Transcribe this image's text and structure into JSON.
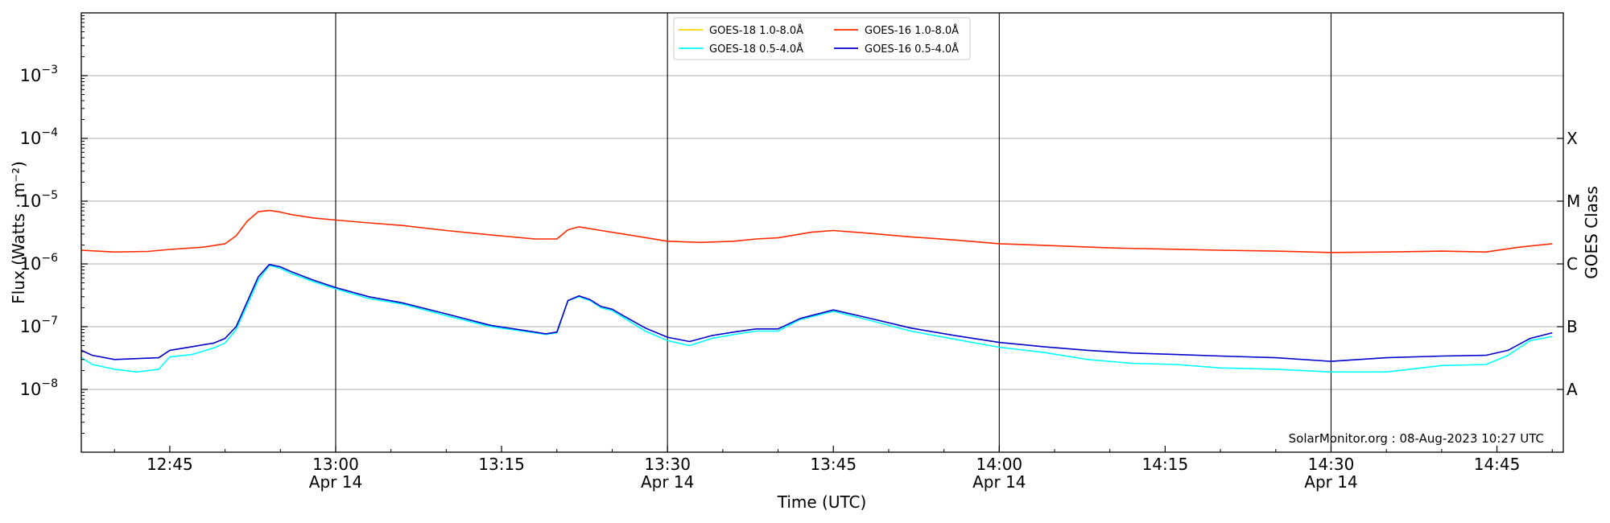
{
  "chart_data": {
    "type": "line",
    "xlabel": "Time (UTC)",
    "ylabel": "Flux (Watts · m⁻²)",
    "right_label": "GOES Class",
    "yscale": "log",
    "ylim": [
      1e-09,
      0.01
    ],
    "xlim": [
      "12:37",
      "14:51"
    ],
    "x_tick_labels": [
      "12:45",
      "13:00",
      "13:15",
      "13:30",
      "13:45",
      "14:00",
      "14:15",
      "14:30",
      "14:45"
    ],
    "date_label": "Apr 14",
    "date_ticks": [
      "13:00",
      "13:30",
      "14:00",
      "14:30"
    ],
    "y_ticks": [
      {
        "value": 1e-08,
        "base": "10",
        "exp": "−8"
      },
      {
        "value": 1e-07,
        "base": "10",
        "exp": "−7"
      },
      {
        "value": 1e-06,
        "base": "10",
        "exp": "−6"
      },
      {
        "value": 1e-05,
        "base": "10",
        "exp": "−5"
      },
      {
        "value": 0.0001,
        "base": "10",
        "exp": "−4"
      },
      {
        "value": 0.001,
        "base": "10",
        "exp": "−3"
      }
    ],
    "class_labels": [
      {
        "label": "A",
        "value": 1e-08
      },
      {
        "label": "B",
        "value": 1e-07
      },
      {
        "label": "C",
        "value": 1e-06
      },
      {
        "label": "M",
        "value": 1e-05
      },
      {
        "label": "X",
        "value": 0.0001
      }
    ],
    "grid": "horizontal at decades",
    "legend_position": "top-center",
    "legend": [
      {
        "label": "GOES-18 1.0-8.0Å",
        "color": "#ffd700"
      },
      {
        "label": "GOES-18 0.5-4.0Å",
        "color": "#00ffff"
      },
      {
        "label": "GOES-16 1.0-8.0Å",
        "color": "#ff2a00"
      },
      {
        "label": "GOES-16 0.5-4.0Å",
        "color": "#0000cc"
      }
    ],
    "watermark": "SolarMonitor.org : 08-Aug-2023 10:27 UTC",
    "series": [
      {
        "name": "GOES-18 1.0-8.0Å",
        "color": "#ffd700",
        "x": [],
        "values": []
      },
      {
        "name": "GOES-16 1.0-8.0Å",
        "color": "#ff2a00",
        "x": [
          "12:37",
          "12:40",
          "12:43",
          "12:45",
          "12:48",
          "12:50",
          "12:51",
          "12:52",
          "12:53",
          "12:54",
          "12:55",
          "12:56",
          "12:58",
          "13:00",
          "13:03",
          "13:06",
          "13:10",
          "13:14",
          "13:18",
          "13:20",
          "13:21",
          "13:22",
          "13:24",
          "13:27",
          "13:30",
          "13:33",
          "13:36",
          "13:38",
          "13:40",
          "13:43",
          "13:45",
          "13:48",
          "13:52",
          "13:56",
          "14:00",
          "14:05",
          "14:10",
          "14:15",
          "14:20",
          "14:25",
          "14:30",
          "14:35",
          "14:40",
          "14:44",
          "14:47",
          "14:50"
        ],
        "values": [
          1.65e-06,
          1.55e-06,
          1.58e-06,
          1.7e-06,
          1.85e-06,
          2.1e-06,
          2.8e-06,
          4.8e-06,
          6.8e-06,
          7.1e-06,
          6.7e-06,
          6.1e-06,
          5.4e-06,
          5e-06,
          4.5e-06,
          4.1e-06,
          3.4e-06,
          2.9e-06,
          2.5e-06,
          2.5e-06,
          3.5e-06,
          3.9e-06,
          3.4e-06,
          2.8e-06,
          2.3e-06,
          2.2e-06,
          2.3e-06,
          2.5e-06,
          2.6e-06,
          3.2e-06,
          3.4e-06,
          3.1e-06,
          2.7e-06,
          2.4e-06,
          2.1e-06,
          1.95e-06,
          1.8e-06,
          1.72e-06,
          1.65e-06,
          1.6e-06,
          1.52e-06,
          1.55e-06,
          1.6e-06,
          1.55e-06,
          1.85e-06,
          2.1e-06
        ]
      },
      {
        "name": "GOES-18 0.5-4.0Å",
        "color": "#00ffff",
        "x": [
          "12:37",
          "12:38",
          "12:40",
          "12:42",
          "12:44",
          "12:45",
          "12:47",
          "12:49",
          "12:50",
          "12:51",
          "12:52",
          "12:53",
          "12:54",
          "12:55",
          "12:56",
          "12:58",
          "13:00",
          "13:03",
          "13:06",
          "13:10",
          "13:14",
          "13:18",
          "13:19",
          "13:20",
          "13:21",
          "13:22",
          "13:23",
          "13:24",
          "13:25",
          "13:26",
          "13:28",
          "13:30",
          "13:32",
          "13:34",
          "13:36",
          "13:38",
          "13:40",
          "13:42",
          "13:45",
          "13:48",
          "13:52",
          "13:56",
          "14:00",
          "14:04",
          "14:08",
          "14:12",
          "14:16",
          "14:20",
          "14:25",
          "14:30",
          "14:35",
          "14:40",
          "14:44",
          "14:46",
          "14:48",
          "14:50"
        ],
        "values": [
          3.2e-08,
          2.5e-08,
          2.1e-08,
          1.9e-08,
          2.1e-08,
          3.3e-08,
          3.6e-08,
          4.6e-08,
          5.5e-08,
          9e-08,
          2.2e-07,
          5.5e-07,
          9.5e-07,
          8.5e-07,
          7e-07,
          5.2e-07,
          4e-07,
          2.8e-07,
          2.3e-07,
          1.5e-07,
          1e-07,
          8e-08,
          7.5e-08,
          8e-08,
          2.6e-07,
          3e-07,
          2.6e-07,
          2e-07,
          1.8e-07,
          1.4e-07,
          8.5e-08,
          6e-08,
          5e-08,
          6.5e-08,
          7.5e-08,
          8.5e-08,
          8.5e-08,
          1.3e-07,
          1.75e-07,
          1.3e-07,
          8.5e-08,
          6.3e-08,
          4.7e-08,
          3.9e-08,
          3e-08,
          2.6e-08,
          2.5e-08,
          2.2e-08,
          2.1e-08,
          1.9e-08,
          1.9e-08,
          2.4e-08,
          2.5e-08,
          3.5e-08,
          6e-08,
          7e-08
        ]
      },
      {
        "name": "GOES-16 0.5-4.0Å",
        "color": "#0000cc",
        "x": [
          "12:37",
          "12:38",
          "12:40",
          "12:42",
          "12:44",
          "12:45",
          "12:47",
          "12:49",
          "12:50",
          "12:51",
          "12:52",
          "12:53",
          "12:54",
          "12:55",
          "12:56",
          "12:58",
          "13:00",
          "13:03",
          "13:06",
          "13:10",
          "13:14",
          "13:18",
          "13:19",
          "13:20",
          "13:21",
          "13:22",
          "13:23",
          "13:24",
          "13:25",
          "13:26",
          "13:28",
          "13:30",
          "13:32",
          "13:34",
          "13:36",
          "13:38",
          "13:40",
          "13:42",
          "13:45",
          "13:48",
          "13:52",
          "13:56",
          "14:00",
          "14:04",
          "14:08",
          "14:12",
          "14:16",
          "14:20",
          "14:25",
          "14:30",
          "14:35",
          "14:40",
          "14:44",
          "14:46",
          "14:48",
          "14:50"
        ],
        "values": [
          4.2e-08,
          3.5e-08,
          3e-08,
          3.1e-08,
          3.2e-08,
          4.2e-08,
          4.8e-08,
          5.5e-08,
          6.5e-08,
          1e-07,
          2.5e-07,
          6.2e-07,
          9.8e-07,
          9e-07,
          7.5e-07,
          5.5e-07,
          4.2e-07,
          3e-07,
          2.4e-07,
          1.6e-07,
          1.05e-07,
          8.2e-08,
          7.7e-08,
          8.2e-08,
          2.6e-07,
          3.1e-07,
          2.7e-07,
          2.1e-07,
          1.9e-07,
          1.5e-07,
          9.5e-08,
          6.8e-08,
          5.8e-08,
          7.2e-08,
          8.2e-08,
          9.2e-08,
          9.2e-08,
          1.35e-07,
          1.85e-07,
          1.4e-07,
          9.5e-08,
          7.2e-08,
          5.6e-08,
          4.8e-08,
          4.2e-08,
          3.8e-08,
          3.6e-08,
          3.4e-08,
          3.2e-08,
          2.8e-08,
          3.2e-08,
          3.4e-08,
          3.5e-08,
          4.2e-08,
          6.5e-08,
          8e-08
        ]
      }
    ]
  }
}
